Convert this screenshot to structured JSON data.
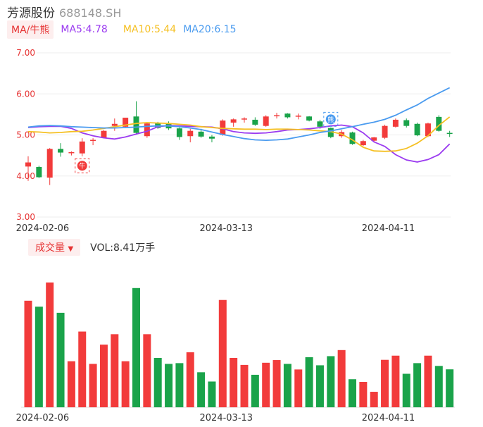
{
  "header": {
    "name": "芳源股份",
    "code": "688148.SH"
  },
  "ma_legend": {
    "tag": "MA/牛熊",
    "ma5": "MA5:4.78",
    "ma10": "MA10:5.44",
    "ma20": "MA20:6.15"
  },
  "volume_legend": {
    "tag": "成交量",
    "dropdown_icon": "triangle-down-icon",
    "value": "VOL:8.41万手"
  },
  "markers": [
    {
      "label": "牛",
      "icon": "bull-icon",
      "index": 5,
      "price": 4.25
    },
    {
      "label": "熊",
      "icon": "bear-icon",
      "index": 28,
      "price": 5.38
    }
  ],
  "colors": {
    "up": "#f23b3b",
    "down": "#1aa34a",
    "ma5": "#9b3bf0",
    "ma10": "#f5c023",
    "ma20": "#4a9bef",
    "axis_text_price": "#e63232",
    "axis_text_date": "#333333",
    "grid": "#eeeeee"
  },
  "chart_data": [
    {
      "type": "candlestick",
      "title": "",
      "x_tick_labels": [
        "2024-02-06",
        "2024-03-13",
        "2024-04-11"
      ],
      "x_tick_index": [
        1,
        18,
        33
      ],
      "y_tick_labels": [
        "7.00",
        "6.00",
        "5.00",
        "4.00",
        "3.00"
      ],
      "ylim": [
        3.0,
        7.0
      ],
      "grid": true,
      "candles": [
        {
          "o": 4.23,
          "c": 4.33,
          "h": 4.48,
          "l": 3.88
        },
        {
          "o": 4.22,
          "c": 3.97,
          "h": 4.25,
          "l": 3.95
        },
        {
          "o": 3.96,
          "c": 4.66,
          "h": 4.68,
          "l": 3.78
        },
        {
          "o": 4.66,
          "c": 4.57,
          "h": 4.8,
          "l": 4.47
        },
        {
          "o": 4.56,
          "c": 4.58,
          "h": 4.6,
          "l": 4.5
        },
        {
          "o": 4.55,
          "c": 4.84,
          "h": 4.92,
          "l": 4.48
        },
        {
          "o": 4.86,
          "c": 4.88,
          "h": 4.92,
          "l": 4.75
        },
        {
          "o": 4.93,
          "c": 5.1,
          "h": 5.12,
          "l": 4.92
        },
        {
          "o": 5.22,
          "c": 5.27,
          "h": 5.4,
          "l": 5.1
        },
        {
          "o": 5.2,
          "c": 5.42,
          "h": 5.42,
          "l": 5.18
        },
        {
          "o": 5.45,
          "c": 5.05,
          "h": 5.82,
          "l": 5.03
        },
        {
          "o": 4.97,
          "c": 5.28,
          "h": 5.3,
          "l": 4.93
        },
        {
          "o": 5.3,
          "c": 5.17,
          "h": 5.32,
          "l": 5.15
        },
        {
          "o": 5.27,
          "c": 5.16,
          "h": 5.33,
          "l": 5.12
        },
        {
          "o": 5.16,
          "c": 4.95,
          "h": 5.18,
          "l": 4.88
        },
        {
          "o": 4.97,
          "c": 5.1,
          "h": 5.15,
          "l": 4.82
        },
        {
          "o": 5.08,
          "c": 4.96,
          "h": 5.15,
          "l": 4.93
        },
        {
          "o": 4.96,
          "c": 4.91,
          "h": 5.0,
          "l": 4.82
        },
        {
          "o": 5.0,
          "c": 5.35,
          "h": 5.38,
          "l": 4.98
        },
        {
          "o": 5.3,
          "c": 5.38,
          "h": 5.4,
          "l": 5.2
        },
        {
          "o": 5.38,
          "c": 5.4,
          "h": 5.43,
          "l": 5.3
        },
        {
          "o": 5.37,
          "c": 5.25,
          "h": 5.43,
          "l": 5.22
        },
        {
          "o": 5.22,
          "c": 5.45,
          "h": 5.48,
          "l": 5.2
        },
        {
          "o": 5.47,
          "c": 5.48,
          "h": 5.54,
          "l": 5.4
        },
        {
          "o": 5.52,
          "c": 5.43,
          "h": 5.53,
          "l": 5.4
        },
        {
          "o": 5.46,
          "c": 5.47,
          "h": 5.52,
          "l": 5.38
        },
        {
          "o": 5.45,
          "c": 5.35,
          "h": 5.46,
          "l": 5.33
        },
        {
          "o": 5.33,
          "c": 5.2,
          "h": 5.37,
          "l": 5.15
        },
        {
          "o": 5.17,
          "c": 4.95,
          "h": 5.18,
          "l": 4.92
        },
        {
          "o": 4.97,
          "c": 5.07,
          "h": 5.12,
          "l": 4.93
        },
        {
          "o": 5.06,
          "c": 4.78,
          "h": 5.08,
          "l": 4.76
        },
        {
          "o": 4.75,
          "c": 4.85,
          "h": 4.88,
          "l": 4.73
        },
        {
          "o": 4.86,
          "c": 4.94,
          "h": 4.95,
          "l": 4.82
        },
        {
          "o": 4.93,
          "c": 5.22,
          "h": 5.25,
          "l": 4.9
        },
        {
          "o": 5.2,
          "c": 5.37,
          "h": 5.4,
          "l": 5.18
        },
        {
          "o": 5.36,
          "c": 5.22,
          "h": 5.4,
          "l": 5.18
        },
        {
          "o": 5.27,
          "c": 4.99,
          "h": 5.3,
          "l": 4.97
        },
        {
          "o": 4.97,
          "c": 5.28,
          "h": 5.3,
          "l": 4.95
        },
        {
          "o": 5.44,
          "c": 5.1,
          "h": 5.48,
          "l": 5.08
        },
        {
          "o": 5.05,
          "c": 5.03,
          "h": 5.1,
          "l": 4.95
        }
      ],
      "series": [
        {
          "name": "MA5",
          "values": [
            5.18,
            5.2,
            5.21,
            5.21,
            5.16,
            5.05,
            4.98,
            4.93,
            4.9,
            4.95,
            5.02,
            5.09,
            5.2,
            5.23,
            5.22,
            5.21,
            5.2,
            5.19,
            5.15,
            5.08,
            5.05,
            5.04,
            5.05,
            5.08,
            5.12,
            5.13,
            5.15,
            5.18,
            5.22,
            5.24,
            5.2,
            5.05,
            4.83,
            4.72,
            4.52,
            4.39,
            4.34,
            4.4,
            4.52,
            4.78
          ]
        },
        {
          "name": "MA10",
          "values": [
            5.08,
            5.07,
            5.05,
            5.06,
            5.08,
            5.09,
            5.12,
            5.16,
            5.2,
            5.24,
            5.28,
            5.3,
            5.29,
            5.28,
            5.26,
            5.24,
            5.2,
            5.18,
            5.16,
            5.15,
            5.14,
            5.14,
            5.13,
            5.14,
            5.14,
            5.13,
            5.12,
            5.1,
            5.08,
            5.02,
            4.88,
            4.7,
            4.61,
            4.6,
            4.61,
            4.67,
            4.8,
            4.98,
            5.23,
            5.44
          ]
        },
        {
          "name": "MA20",
          "values": [
            5.19,
            5.22,
            5.23,
            5.22,
            5.2,
            5.19,
            5.18,
            5.17,
            5.17,
            5.18,
            5.19,
            5.21,
            5.22,
            5.22,
            5.2,
            5.17,
            5.13,
            5.07,
            5.01,
            4.96,
            4.91,
            4.88,
            4.87,
            4.88,
            4.9,
            4.95,
            5.0,
            5.06,
            5.1,
            5.15,
            5.2,
            5.26,
            5.31,
            5.38,
            5.48,
            5.61,
            5.73,
            5.89,
            6.02,
            6.15
          ]
        }
      ]
    },
    {
      "type": "bar",
      "title": "",
      "x_tick_labels": [
        "2024-02-06",
        "2024-03-13",
        "2024-04-11"
      ],
      "x_tick_index": [
        1,
        18,
        33
      ],
      "ylim": [
        0,
        100
      ],
      "series": [
        {
          "values": [
            84.0,
            79.3,
            98.4,
            74.5,
            36.3,
            59.7,
            34.2,
            49.4,
            57.6,
            36.3,
            94.0,
            57.6,
            38.9,
            34.2,
            34.8,
            43.4,
            27.6,
            20.3,
            84.6,
            38.9,
            33.4,
            25.6,
            35.1,
            37.2,
            34.2,
            29.8,
            39.5,
            33.1,
            40.3,
            45.1,
            22.1,
            20.0,
            12.2,
            37.4,
            40.7,
            26.4,
            34.8,
            40.7,
            32.6,
            29.9
          ]
        }
      ]
    }
  ]
}
